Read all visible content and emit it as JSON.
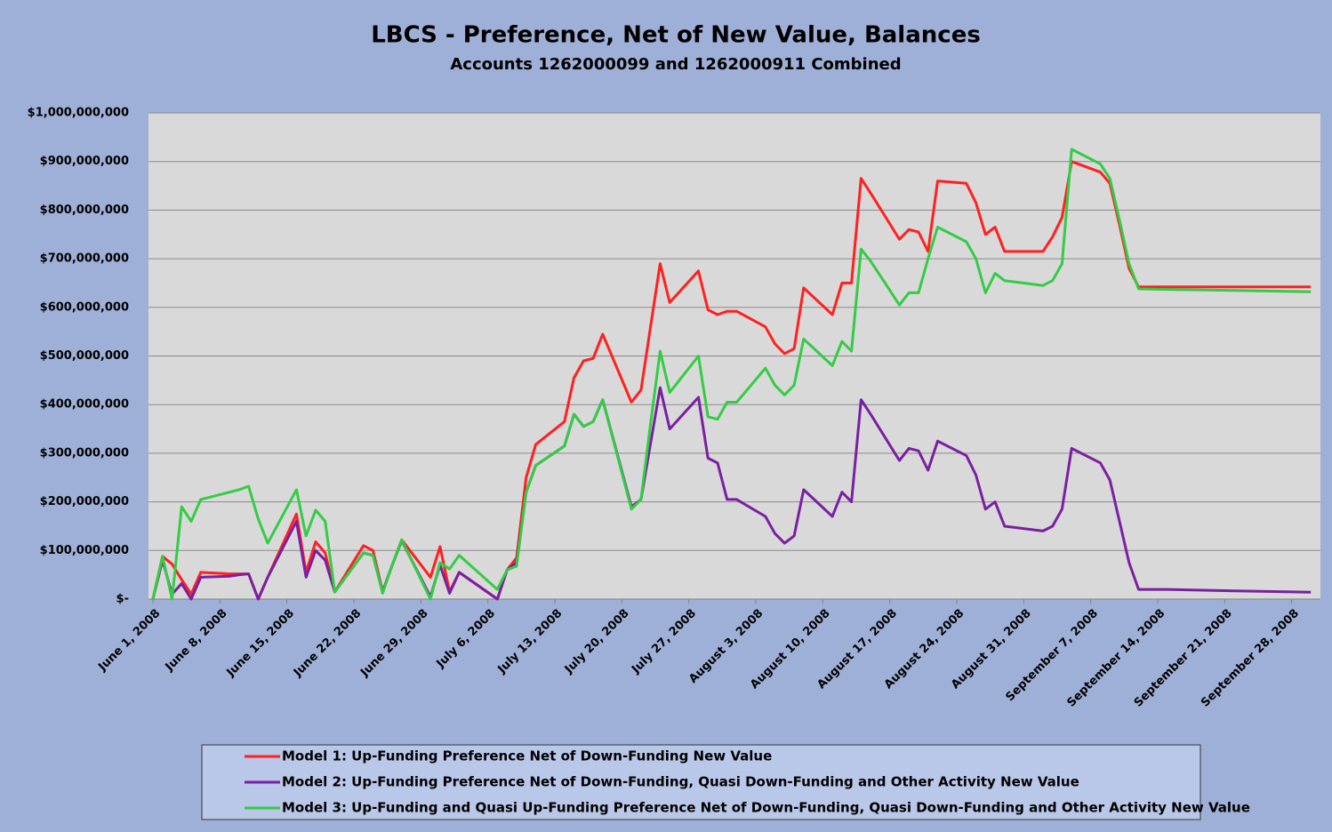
{
  "chart_data": {
    "type": "line",
    "title": "LBCS - Preference, Net of New Value, Balances",
    "subtitle": "Accounts 1262000099 and 1262000911 Combined",
    "x": [
      "2008-06-01",
      "2008-06-02",
      "2008-06-03",
      "2008-06-04",
      "2008-06-05",
      "2008-06-06",
      "2008-06-09",
      "2008-06-10",
      "2008-06-11",
      "2008-06-12",
      "2008-06-13",
      "2008-06-16",
      "2008-06-17",
      "2008-06-18",
      "2008-06-19",
      "2008-06-20",
      "2008-06-23",
      "2008-06-24",
      "2008-06-25",
      "2008-06-26",
      "2008-06-27",
      "2008-06-30",
      "2008-07-01",
      "2008-07-02",
      "2008-07-03",
      "2008-07-07",
      "2008-07-08",
      "2008-07-09",
      "2008-07-10",
      "2008-07-11",
      "2008-07-14",
      "2008-07-15",
      "2008-07-16",
      "2008-07-17",
      "2008-07-18",
      "2008-07-21",
      "2008-07-22",
      "2008-07-23",
      "2008-07-24",
      "2008-07-25",
      "2008-07-28",
      "2008-07-29",
      "2008-07-30",
      "2008-07-31",
      "2008-08-01",
      "2008-08-04",
      "2008-08-05",
      "2008-08-06",
      "2008-08-07",
      "2008-08-08",
      "2008-08-11",
      "2008-08-12",
      "2008-08-13",
      "2008-08-14",
      "2008-08-15",
      "2008-08-18",
      "2008-08-19",
      "2008-08-20",
      "2008-08-21",
      "2008-08-22",
      "2008-08-25",
      "2008-08-26",
      "2008-08-27",
      "2008-08-28",
      "2008-08-29",
      "2008-09-02",
      "2008-09-03",
      "2008-09-04",
      "2008-09-05",
      "2008-09-08",
      "2008-09-09",
      "2008-09-10",
      "2008-09-11",
      "2008-09-12",
      "2008-09-15",
      "2008-09-22",
      "2008-09-30"
    ],
    "series": [
      {
        "name": "Model 1: Up-Funding Preference Net of Down-Funding New Value",
        "color": "#ff2020",
        "values": [
          0,
          88000000,
          72000000,
          40000000,
          10000000,
          55000000,
          52000000,
          52000000,
          52000000,
          0,
          45000000,
          175000000,
          55000000,
          118000000,
          95000000,
          15000000,
          110000000,
          100000000,
          15000000,
          70000000,
          122000000,
          45000000,
          108000000,
          15000000,
          55000000,
          0,
          60000000,
          85000000,
          250000000,
          318000000,
          365000000,
          455000000,
          490000000,
          495000000,
          545000000,
          405000000,
          430000000,
          560000000,
          690000000,
          610000000,
          675000000,
          595000000,
          585000000,
          592000000,
          592000000,
          560000000,
          525000000,
          505000000,
          515000000,
          640000000,
          585000000,
          650000000,
          650000000,
          865000000,
          835000000,
          740000000,
          760000000,
          755000000,
          715000000,
          860000000,
          855000000,
          815000000,
          750000000,
          765000000,
          715000000,
          715000000,
          745000000,
          785000000,
          900000000,
          878000000,
          855000000,
          770000000,
          680000000,
          642000000,
          642000000,
          642000000,
          642000000
        ]
      },
      {
        "name": "Model 2: Up-Funding Preference Net of Down-Funding, Quasi Down-Funding and Other Activity New Value",
        "color": "#7a1fa2",
        "values": [
          0,
          80000000,
          10000000,
          32000000,
          0,
          45000000,
          47000000,
          50000000,
          52000000,
          0,
          45000000,
          160000000,
          45000000,
          100000000,
          80000000,
          15000000,
          95000000,
          90000000,
          15000000,
          70000000,
          120000000,
          5000000,
          70000000,
          12000000,
          55000000,
          0,
          60000000,
          75000000,
          220000000,
          275000000,
          315000000,
          380000000,
          355000000,
          365000000,
          410000000,
          190000000,
          205000000,
          320000000,
          435000000,
          350000000,
          415000000,
          290000000,
          280000000,
          205000000,
          205000000,
          170000000,
          135000000,
          115000000,
          130000000,
          225000000,
          170000000,
          220000000,
          200000000,
          410000000,
          380000000,
          285000000,
          310000000,
          305000000,
          265000000,
          325000000,
          295000000,
          255000000,
          185000000,
          200000000,
          150000000,
          140000000,
          150000000,
          185000000,
          310000000,
          280000000,
          245000000,
          160000000,
          75000000,
          20000000,
          20000000,
          17000000,
          14000000
        ]
      },
      {
        "name": "Model 3: Up-Funding and Quasi Up-Funding Preference Net of Down-Funding, Quasi Down-Funding and Other Activity New Value",
        "color": "#33cc44",
        "values": [
          0,
          88000000,
          0,
          190000000,
          160000000,
          205000000,
          220000000,
          225000000,
          232000000,
          165000000,
          115000000,
          225000000,
          130000000,
          183000000,
          160000000,
          15000000,
          95000000,
          90000000,
          12000000,
          70000000,
          122000000,
          0,
          75000000,
          62000000,
          90000000,
          20000000,
          60000000,
          68000000,
          220000000,
          275000000,
          315000000,
          380000000,
          355000000,
          365000000,
          410000000,
          185000000,
          205000000,
          360000000,
          510000000,
          425000000,
          500000000,
          375000000,
          370000000,
          405000000,
          405000000,
          475000000,
          440000000,
          420000000,
          440000000,
          535000000,
          480000000,
          530000000,
          510000000,
          720000000,
          695000000,
          605000000,
          630000000,
          630000000,
          700000000,
          765000000,
          735000000,
          700000000,
          630000000,
          670000000,
          655000000,
          645000000,
          655000000,
          690000000,
          925000000,
          895000000,
          865000000,
          780000000,
          690000000,
          638000000,
          637000000,
          635000000,
          632000000
        ]
      }
    ],
    "xlim": [
      "2008-06-01",
      "2008-10-01"
    ],
    "xticks": [
      {
        "value": "2008-06-01",
        "label": "June 1, 2008"
      },
      {
        "value": "2008-06-08",
        "label": "June 8, 2008"
      },
      {
        "value": "2008-06-15",
        "label": "June 15, 2008"
      },
      {
        "value": "2008-06-22",
        "label": "June 22, 2008"
      },
      {
        "value": "2008-06-29",
        "label": "June 29, 2008"
      },
      {
        "value": "2008-07-06",
        "label": "July 6, 2008"
      },
      {
        "value": "2008-07-13",
        "label": "July 13, 2008"
      },
      {
        "value": "2008-07-20",
        "label": "July 20, 2008"
      },
      {
        "value": "2008-07-27",
        "label": "July 27, 2008"
      },
      {
        "value": "2008-08-03",
        "label": "August 3, 2008"
      },
      {
        "value": "2008-08-10",
        "label": "August 10, 2008"
      },
      {
        "value": "2008-08-17",
        "label": "August 17, 2008"
      },
      {
        "value": "2008-08-24",
        "label": "August 24, 2008"
      },
      {
        "value": "2008-08-31",
        "label": "August 31, 2008"
      },
      {
        "value": "2008-09-07",
        "label": "September 7, 2008"
      },
      {
        "value": "2008-09-14",
        "label": "September 14, 2008"
      },
      {
        "value": "2008-09-21",
        "label": "September 21, 2008"
      },
      {
        "value": "2008-09-28",
        "label": "September 28, 2008"
      }
    ],
    "ylim": [
      0,
      1000000000
    ],
    "yticks": [
      {
        "value": 0,
        "label": "$-"
      },
      {
        "value": 100000000,
        "label": "$100,000,000"
      },
      {
        "value": 200000000,
        "label": "$200,000,000"
      },
      {
        "value": 300000000,
        "label": "$300,000,000"
      },
      {
        "value": 400000000,
        "label": "$400,000,000"
      },
      {
        "value": 500000000,
        "label": "$500,000,000"
      },
      {
        "value": 600000000,
        "label": "$600,000,000"
      },
      {
        "value": 700000000,
        "label": "$700,000,000"
      },
      {
        "value": 800000000,
        "label": "$800,000,000"
      },
      {
        "value": 900000000,
        "label": "$900,000,000"
      },
      {
        "value": 1000000000,
        "label": "$1,000,000,000"
      }
    ],
    "grid": true,
    "legend": "bottom"
  }
}
